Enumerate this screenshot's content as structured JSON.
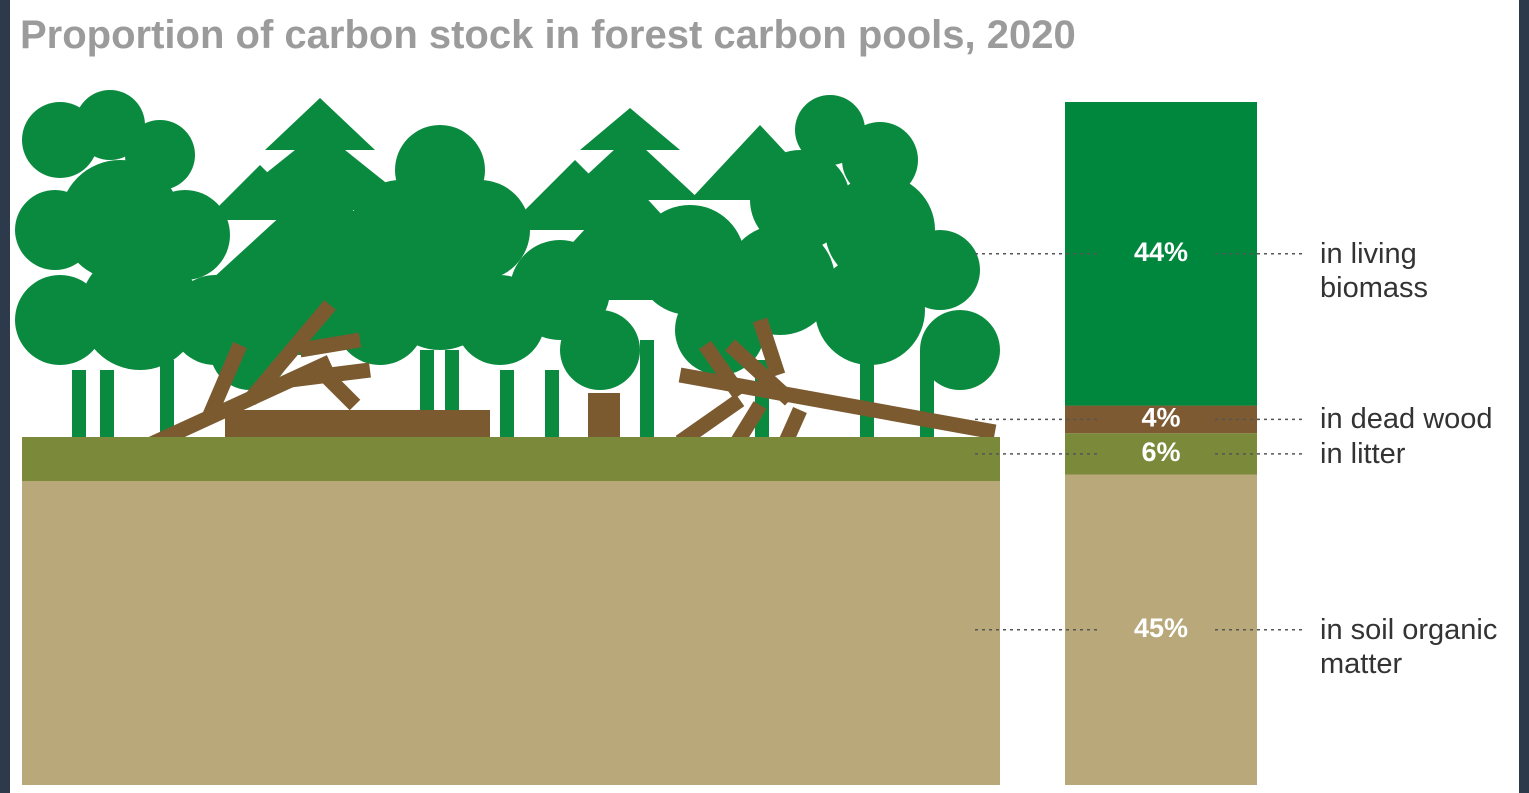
{
  "chart_data": {
    "type": "stacked-bar",
    "title": "Proportion of carbon stock in forest carbon pools, 2020",
    "series": [
      {
        "name": "in living biomass",
        "color": "#00873e",
        "values": [
          44
        ],
        "value_labels": [
          "44%"
        ]
      },
      {
        "name": "in dead wood",
        "color": "#7d5a32",
        "values": [
          4
        ],
        "value_labels": [
          "4%"
        ]
      },
      {
        "name": "in litter",
        "color": "#7b8a3a",
        "values": [
          6
        ],
        "value_labels": [
          "6%"
        ]
      },
      {
        "name": "in soil organic matter",
        "color": "#b8a87a",
        "values": [
          45
        ],
        "value_labels": [
          "45%"
        ]
      }
    ]
  }
}
